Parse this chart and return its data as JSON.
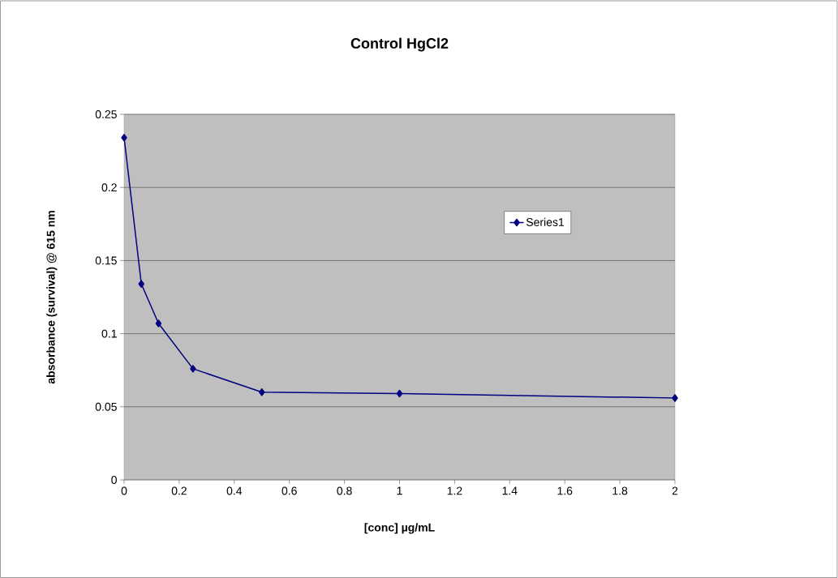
{
  "chart_data": {
    "type": "line",
    "title": "Control HgCl2",
    "xlabel": "[conc] µg/mL",
    "ylabel": "absorbance (survival)  @ 615 nm",
    "x": [
      0,
      0.0625,
      0.125,
      0.25,
      0.5,
      1,
      2
    ],
    "series": [
      {
        "name": "Series1",
        "color": "#000080",
        "values": [
          0.234,
          0.134,
          0.107,
          0.076,
          0.06,
          0.059,
          0.056
        ]
      }
    ],
    "xlim": [
      0,
      2
    ],
    "ylim": [
      0,
      0.25
    ],
    "xticks": [
      0,
      0.2,
      0.4,
      0.6,
      0.8,
      1,
      1.2,
      1.4,
      1.6,
      1.8,
      2
    ],
    "yticks": [
      0,
      0.05,
      0.1,
      0.15,
      0.2,
      0.25
    ],
    "grid": "y",
    "legend": "right",
    "marker": "diamond",
    "line_style": "solid"
  }
}
